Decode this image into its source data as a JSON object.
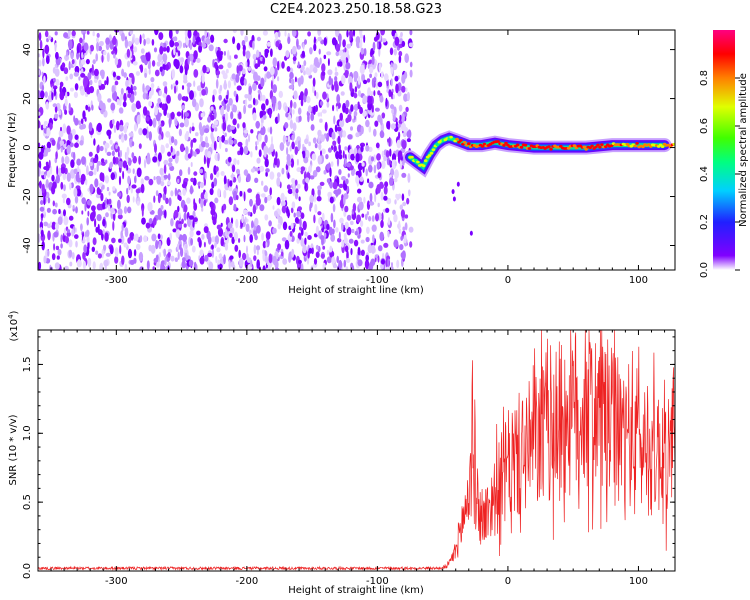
{
  "title": "C2E4.2023.250.18.58.G23",
  "chart_data": [
    {
      "type": "heatmap",
      "name": "spectrogram",
      "xlabel": "Height of straight line (km)",
      "ylabel": "Frequency (Hz)",
      "xlim": [
        -360,
        128
      ],
      "ylim": [
        -50,
        48
      ],
      "xticks": [
        -300,
        -200,
        -100,
        0,
        100
      ],
      "yticks": [
        -40,
        -20,
        0,
        20,
        40
      ],
      "noise_region_x": [
        -360,
        -74
      ],
      "signal_track": [
        {
          "x": -75,
          "y": -4
        },
        {
          "x": -70,
          "y": -6
        },
        {
          "x": -65,
          "y": -8
        },
        {
          "x": -60,
          "y": -3
        },
        {
          "x": -55,
          "y": 1
        },
        {
          "x": -50,
          "y": 3
        },
        {
          "x": -45,
          "y": 4
        },
        {
          "x": -40,
          "y": 3
        },
        {
          "x": -30,
          "y": 1
        },
        {
          "x": -20,
          "y": 1
        },
        {
          "x": -10,
          "y": 2
        },
        {
          "x": 0,
          "y": 1
        },
        {
          "x": 20,
          "y": 0
        },
        {
          "x": 40,
          "y": 0
        },
        {
          "x": 60,
          "y": 0
        },
        {
          "x": 80,
          "y": 1
        },
        {
          "x": 100,
          "y": 1
        },
        {
          "x": 120,
          "y": 1
        }
      ],
      "colorbar": {
        "label": "Normalized spectral amplitude",
        "ticks": [
          0.0,
          0.2,
          0.4,
          0.6,
          0.8
        ],
        "tick_labels": [
          "0.0",
          "0.2",
          "0.4",
          "0.6",
          "0.8"
        ],
        "range": [
          0,
          1
        ]
      }
    },
    {
      "type": "line",
      "name": "snr",
      "xlabel": "Height of straight line (km)",
      "ylabel": "SNR (10 * v/v)",
      "multiplier": "(x10",
      "multiplier_exp": "4",
      "multiplier_close": ")",
      "xlim": [
        -360,
        128
      ],
      "ylim": [
        0,
        1.75
      ],
      "xticks": [
        -300,
        -200,
        -100,
        0,
        100
      ],
      "yticks": [
        0.0,
        0.5,
        1.0,
        1.5
      ],
      "ytick_labels": [
        "0.0",
        "0.5",
        "1.0",
        "1.5"
      ],
      "color": "#ee2222",
      "envelope": [
        {
          "x": -360,
          "y": 0.02
        },
        {
          "x": -50,
          "y": 0.02
        },
        {
          "x": -45,
          "y": 0.05
        },
        {
          "x": -40,
          "y": 0.15
        },
        {
          "x": -35,
          "y": 0.35
        },
        {
          "x": -30,
          "y": 0.55
        },
        {
          "x": -27,
          "y": 0.95
        },
        {
          "x": -25,
          "y": 0.6
        },
        {
          "x": -20,
          "y": 0.35
        },
        {
          "x": -15,
          "y": 0.45
        },
        {
          "x": -10,
          "y": 0.55
        },
        {
          "x": 0,
          "y": 0.75
        },
        {
          "x": 10,
          "y": 0.85
        },
        {
          "x": 20,
          "y": 0.92
        },
        {
          "x": 30,
          "y": 1.05
        },
        {
          "x": 40,
          "y": 1.1
        },
        {
          "x": 50,
          "y": 1.15
        },
        {
          "x": 60,
          "y": 1.2
        },
        {
          "x": 70,
          "y": 1.15
        },
        {
          "x": 80,
          "y": 1.05
        },
        {
          "x": 90,
          "y": 0.95
        },
        {
          "x": 95,
          "y": 1.05
        },
        {
          "x": 100,
          "y": 0.95
        },
        {
          "x": 110,
          "y": 0.85
        },
        {
          "x": 120,
          "y": 0.9
        },
        {
          "x": 128,
          "y": 0.85
        }
      ]
    }
  ]
}
